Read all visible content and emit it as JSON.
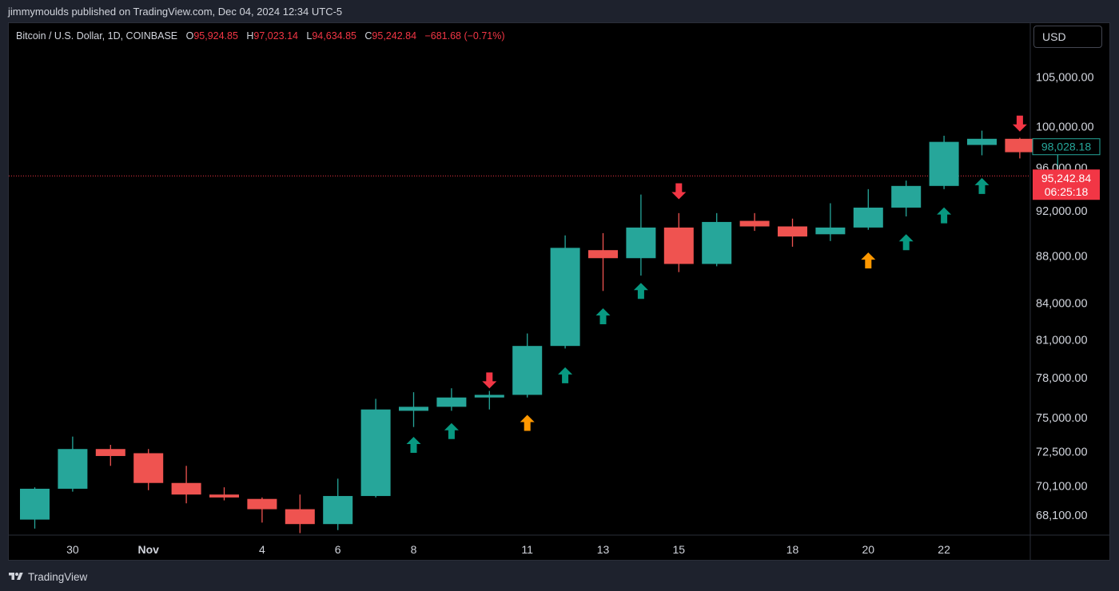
{
  "header": {
    "published_line": "jimmymoulds published on TradingView.com, Dec 04, 2024 12:34 UTC-5"
  },
  "legend": {
    "symbol": "Bitcoin / U.S. Dollar, 1D, COINBASE",
    "open_key": "O",
    "open_value": "95,924.85",
    "high_key": "H",
    "high_value": "97,023.14",
    "low_key": "L",
    "low_value": "94,634.85",
    "close_key": "C",
    "close_value": "95,242.84",
    "change": "−681.68 (−0.71%)"
  },
  "currency_button": "USD",
  "price_labels": {
    "last_close": "98,028.18",
    "current_price": "95,242.84",
    "countdown": "06:25:18"
  },
  "footer": {
    "brand": "TradingView"
  },
  "colors": {
    "up": "#26a69a",
    "down": "#ef5350",
    "arrow_up": "#089981",
    "arrow_down": "#f23645",
    "arrow_warn": "#ff9800",
    "price_line": "#f23645",
    "text": "#d1d4dc"
  },
  "chart_data": {
    "type": "candlestick",
    "scale": "log",
    "y_ticks": [
      68100,
      70100,
      72500,
      75000,
      78000,
      81000,
      84000,
      88000,
      92000,
      96000,
      100000,
      105000
    ],
    "y_tick_labels": [
      "68,100.00",
      "70,100.00",
      "72,500.00",
      "75,000.00",
      "78,000.00",
      "81,000.00",
      "84,000.00",
      "88,000.00",
      "92,000.00",
      "96,000.00",
      "100,000.00",
      "105,000.00"
    ],
    "x_tick_labels": [
      {
        "index": 1,
        "label": "30",
        "bold": false
      },
      {
        "index": 3,
        "label": "Nov",
        "bold": true
      },
      {
        "index": 6,
        "label": "4",
        "bold": false
      },
      {
        "index": 8,
        "label": "6",
        "bold": false
      },
      {
        "index": 10,
        "label": "8",
        "bold": false
      },
      {
        "index": 13,
        "label": "11",
        "bold": false
      },
      {
        "index": 15,
        "label": "13",
        "bold": false
      },
      {
        "index": 17,
        "label": "15",
        "bold": false
      },
      {
        "index": 20,
        "label": "18",
        "bold": false
      },
      {
        "index": 22,
        "label": "20",
        "bold": false
      },
      {
        "index": 24,
        "label": "22",
        "bold": false
      }
    ],
    "current_price": 95242.84,
    "candles": [
      {
        "i": 0,
        "o": 67800,
        "h": 70000,
        "l": 67200,
        "c": 69900
      },
      {
        "i": 1,
        "o": 69900,
        "h": 73600,
        "l": 69700,
        "c": 72700
      },
      {
        "i": 2,
        "o": 72700,
        "h": 73000,
        "l": 71500,
        "c": 72200
      },
      {
        "i": 3,
        "o": 72400,
        "h": 72700,
        "l": 69800,
        "c": 70300
      },
      {
        "i": 4,
        "o": 70300,
        "h": 71500,
        "l": 68900,
        "c": 69500
      },
      {
        "i": 5,
        "o": 69500,
        "h": 70000,
        "l": 69100,
        "c": 69300
      },
      {
        "i": 6,
        "o": 69200,
        "h": 69300,
        "l": 67600,
        "c": 68500
      },
      {
        "i": 7,
        "o": 68500,
        "h": 69500,
        "l": 66900,
        "c": 67500
      },
      {
        "i": 8,
        "o": 67500,
        "h": 70600,
        "l": 67100,
        "c": 69400
      },
      {
        "i": 9,
        "o": 69400,
        "h": 76400,
        "l": 69300,
        "c": 75600
      },
      {
        "i": 10,
        "o": 75500,
        "h": 76900,
        "l": 74300,
        "c": 75800
      },
      {
        "i": 11,
        "o": 75800,
        "h": 77200,
        "l": 75500,
        "c": 76500
      },
      {
        "i": 12,
        "o": 76500,
        "h": 77000,
        "l": 75600,
        "c": 76700
      },
      {
        "i": 13,
        "o": 76700,
        "h": 81500,
        "l": 76500,
        "c": 80500
      },
      {
        "i": 14,
        "o": 80500,
        "h": 89800,
        "l": 80300,
        "c": 88700
      },
      {
        "i": 15,
        "o": 88500,
        "h": 90000,
        "l": 85000,
        "c": 87800
      },
      {
        "i": 16,
        "o": 87800,
        "h": 93500,
        "l": 86300,
        "c": 90500
      },
      {
        "i": 17,
        "o": 90500,
        "h": 91800,
        "l": 86600,
        "c": 87300
      },
      {
        "i": 18,
        "o": 87300,
        "h": 91800,
        "l": 87100,
        "c": 91000
      },
      {
        "i": 19,
        "o": 91100,
        "h": 91800,
        "l": 90200,
        "c": 90600
      },
      {
        "i": 20,
        "o": 90600,
        "h": 91300,
        "l": 88800,
        "c": 89700
      },
      {
        "i": 21,
        "o": 89900,
        "h": 92700,
        "l": 89300,
        "c": 90500
      },
      {
        "i": 22,
        "o": 90500,
        "h": 94000,
        "l": 90300,
        "c": 92300
      },
      {
        "i": 23,
        "o": 92300,
        "h": 94800,
        "l": 91500,
        "c": 94300
      },
      {
        "i": 24,
        "o": 94300,
        "h": 99100,
        "l": 94000,
        "c": 98500
      },
      {
        "i": 25,
        "o": 98200,
        "h": 99600,
        "l": 97200,
        "c": 98800
      },
      {
        "i": 26,
        "o": 98800,
        "h": 98900,
        "l": 96900,
        "c": 97500
      },
      {
        "i": 27,
        "o": 97800,
        "h": 98500,
        "l": 95700,
        "c": 98028.18
      }
    ],
    "signals": [
      {
        "i": 10,
        "dir": "up",
        "color": "arrow_up",
        "price": 73000
      },
      {
        "i": 11,
        "dir": "up",
        "color": "arrow_up",
        "price": 74000
      },
      {
        "i": 12,
        "dir": "down",
        "color": "arrow_down",
        "price": 77800
      },
      {
        "i": 13,
        "dir": "up",
        "color": "arrow_warn",
        "price": 74600
      },
      {
        "i": 14,
        "dir": "up",
        "color": "arrow_up",
        "price": 78200
      },
      {
        "i": 15,
        "dir": "up",
        "color": "arrow_up",
        "price": 82900
      },
      {
        "i": 16,
        "dir": "up",
        "color": "arrow_up",
        "price": 85000
      },
      {
        "i": 17,
        "dir": "down",
        "color": "arrow_down",
        "price": 93800
      },
      {
        "i": 22,
        "dir": "up",
        "color": "arrow_warn",
        "price": 87600
      },
      {
        "i": 23,
        "dir": "up",
        "color": "arrow_up",
        "price": 89200
      },
      {
        "i": 24,
        "dir": "up",
        "color": "arrow_up",
        "price": 91600
      },
      {
        "i": 25,
        "dir": "up",
        "color": "arrow_up",
        "price": 94300
      },
      {
        "i": 26,
        "dir": "down",
        "color": "arrow_down",
        "price": 100300
      }
    ]
  }
}
